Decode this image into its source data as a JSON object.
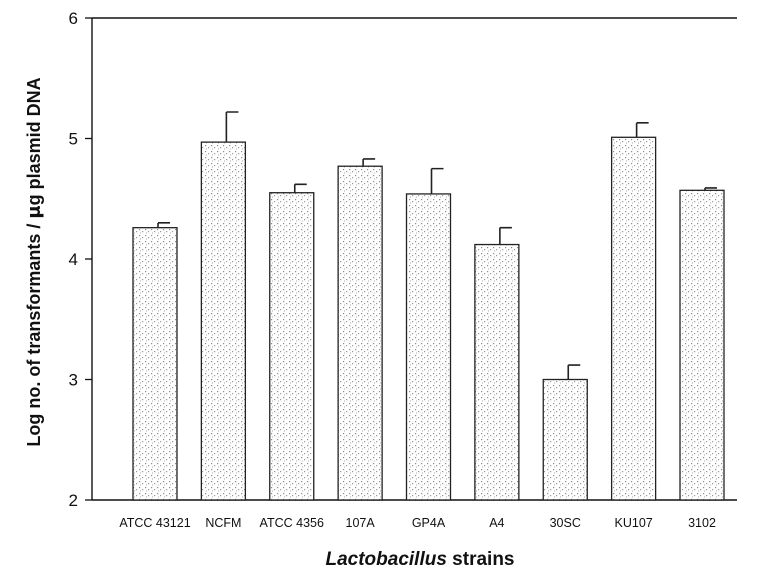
{
  "chart_data": {
    "type": "bar",
    "xlabel_italic": "Lactobacillus",
    "xlabel_rest": " strains",
    "ylabel_part1": "Log no. of transformants / ",
    "ylabel_mu": "μ",
    "ylabel_part2": "g plasmid DNA",
    "ylim": [
      2,
      6
    ],
    "yticks": [
      "2",
      "3",
      "4",
      "5",
      "6"
    ],
    "categories": [
      "ATCC 43121",
      "NCFM",
      "ATCC 4356",
      "107A",
      "GP4A",
      "A4",
      "30SC",
      "KU107",
      "3102"
    ],
    "values": [
      4.26,
      4.97,
      4.55,
      4.77,
      4.54,
      4.12,
      3.0,
      5.01,
      4.57
    ],
    "errors": [
      0.04,
      0.25,
      0.07,
      0.06,
      0.21,
      0.14,
      0.12,
      0.12,
      0.02
    ],
    "grid": false,
    "legend": "none",
    "colors": {
      "bar_fill": "#ffffff",
      "stipple": "#8a8a8a",
      "axis": "#111111"
    }
  }
}
